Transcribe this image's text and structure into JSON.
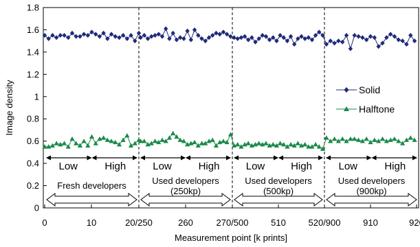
{
  "chart_data": {
    "type": "line",
    "ylabel": "Image  density",
    "xlabel": "Measurement  point [k prints]",
    "ylim": [
      0,
      1.8
    ],
    "y_ticks": [
      "0",
      "0.2",
      "0.4",
      "0.6",
      "0.8",
      "1",
      "1.2",
      "1.4",
      "1.6",
      "1.8"
    ],
    "x_ticks": [
      "0",
      "10",
      "20/250",
      "260",
      "270/500",
      "510",
      "520/900",
      "910",
      "920"
    ],
    "grid": false,
    "legend_position": "right",
    "colors": {
      "solid": "#1f2a7a",
      "halftone": "#1a8a4a"
    },
    "segments": [
      {
        "low": "Low",
        "high": "High",
        "developer_lines": [
          "Fresh developers"
        ]
      },
      {
        "low": "Low",
        "high": "High",
        "developer_lines": [
          "Used developers",
          "(250kp)"
        ]
      },
      {
        "low": "Low",
        "high": "High",
        "developer_lines": [
          "Used developers",
          "(500kp)"
        ]
      },
      {
        "low": "Low",
        "high": "High",
        "developer_lines": [
          "Used developers",
          "(900kp)"
        ]
      }
    ],
    "series": [
      {
        "name": "Solid",
        "marker": "diamond",
        "values": [
          1.55,
          1.52,
          1.55,
          1.53,
          1.55,
          1.55,
          1.53,
          1.57,
          1.54,
          1.54,
          1.56,
          1.55,
          1.58,
          1.56,
          1.54,
          1.57,
          1.52,
          1.56,
          1.54,
          1.53,
          1.55,
          1.52,
          1.55,
          1.5,
          1.57,
          1.53,
          1.55,
          1.52,
          1.54,
          1.55,
          1.56,
          1.54,
          1.61,
          1.52,
          1.57,
          1.51,
          1.53,
          1.52,
          1.59,
          1.51,
          1.6,
          1.55,
          1.52,
          1.5,
          1.53,
          1.55,
          1.57,
          1.56,
          1.58,
          1.56,
          1.54,
          1.53,
          1.52,
          1.53,
          1.54,
          1.51,
          1.53,
          1.49,
          1.52,
          1.55,
          1.54,
          1.51,
          1.53,
          1.5,
          1.55,
          1.53,
          1.5,
          1.54,
          1.47,
          1.52,
          1.54,
          1.52,
          1.53,
          1.51,
          1.55,
          1.58,
          1.55,
          1.47,
          1.5,
          1.48,
          1.5,
          1.49,
          1.55,
          1.43,
          1.55,
          1.54,
          1.53,
          1.51,
          1.54,
          1.53,
          1.45,
          1.48,
          1.53,
          1.56,
          1.54,
          1.51,
          1.5,
          1.47,
          1.55,
          1.5
        ]
      },
      {
        "name": "Halftone",
        "marker": "triangle",
        "values": [
          0.55,
          0.55,
          0.56,
          0.58,
          0.57,
          0.58,
          0.55,
          0.62,
          0.58,
          0.56,
          0.6,
          0.56,
          0.64,
          0.58,
          0.62,
          0.63,
          0.61,
          0.6,
          0.59,
          0.57,
          0.61,
          0.65,
          0.56,
          0.58,
          0.61,
          0.6,
          0.6,
          0.57,
          0.58,
          0.6,
          0.59,
          0.61,
          0.6,
          0.63,
          0.67,
          0.64,
          0.61,
          0.6,
          0.57,
          0.58,
          0.59,
          0.56,
          0.58,
          0.58,
          0.6,
          0.61,
          0.56,
          0.59,
          0.6,
          0.59,
          0.66,
          0.56,
          0.57,
          0.55,
          0.57,
          0.58,
          0.56,
          0.57,
          0.58,
          0.57,
          0.58,
          0.56,
          0.57,
          0.56,
          0.58,
          0.57,
          0.55,
          0.57,
          0.56,
          0.58,
          0.56,
          0.57,
          0.55,
          0.55,
          0.57,
          0.55,
          0.53,
          0.63,
          0.6,
          0.62,
          0.6,
          0.62,
          0.6,
          0.62,
          0.62,
          0.61,
          0.6,
          0.62,
          0.59,
          0.61,
          0.6,
          0.62,
          0.6,
          0.61,
          0.62,
          0.6,
          0.58,
          0.61,
          0.63,
          0.61
        ]
      }
    ]
  }
}
